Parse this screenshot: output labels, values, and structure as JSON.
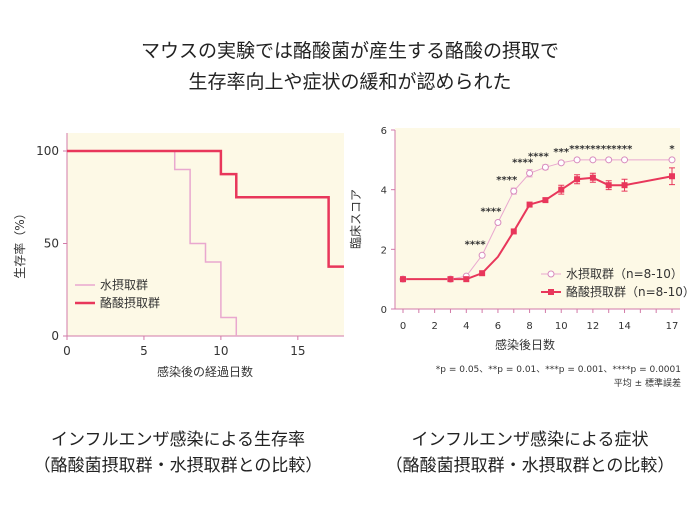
{
  "header": {
    "title_line1": "マウスの実験では酪酸菌が産生する酪酸の摂取で",
    "title_line2": "生存率向上や症状の緩和が認められた"
  },
  "colors": {
    "water": "#e9a8cf",
    "butyrate": "#e8375b",
    "plot_bg": "#fdf9e6",
    "axis": "#d27aa8"
  },
  "captions": {
    "left_line1": "インフルエンザ感染による生存率",
    "left_line2": "（酪酸菌摂取群・水摂取群との比較）",
    "right_line1": "インフルエンザ感染による症状",
    "right_line2": "（酪酸菌摂取群・水摂取群との比較）"
  },
  "chart_data": [
    {
      "type": "line",
      "step": true,
      "xlabel": "感染後の経過日数",
      "ylabel": "生存率（%）",
      "xlim": [
        0,
        18
      ],
      "ylim": [
        0,
        100
      ],
      "xticks": [
        "0",
        "5",
        "10",
        "15"
      ],
      "yticks": [
        "0",
        "50",
        "100"
      ],
      "legend_position": "bottom-left",
      "series": [
        {
          "name": "水摂取群",
          "x": [
            0,
            7,
            8,
            9,
            10,
            11
          ],
          "values": [
            100,
            90,
            50,
            40,
            10,
            0
          ]
        },
        {
          "name": "酪酸摂取群",
          "x": [
            0,
            10,
            11,
            17,
            18
          ],
          "values": [
            100,
            87.5,
            75,
            37.5,
            37.5
          ]
        }
      ]
    },
    {
      "type": "line",
      "xlabel": "感染後日数",
      "ylabel": "臨床スコア",
      "xlim": [
        0,
        17
      ],
      "ylim": [
        0,
        6
      ],
      "xticks": [
        "0",
        "2",
        "4",
        "6",
        "8",
        "10",
        "12",
        "14",
        "17"
      ],
      "yticks": [
        "0",
        "2",
        "4",
        "6"
      ],
      "legend_position": "bottom-right",
      "x": [
        0,
        3,
        4,
        5,
        6,
        7,
        8,
        9,
        10,
        11,
        12,
        13,
        14,
        17
      ],
      "series": [
        {
          "name": "水摂取群（n=8-10）",
          "values": [
            1,
            1,
            1.1,
            1.8,
            2.9,
            3.95,
            4.55,
            4.75,
            4.9,
            5,
            5,
            5,
            5,
            5
          ],
          "error": [
            0,
            0,
            0,
            0,
            0,
            0.1,
            0.12,
            0.08,
            0.05,
            0,
            0,
            0,
            0,
            0
          ]
        },
        {
          "name": "酪酸摂取群（n=8-10）",
          "values": [
            1,
            1,
            1,
            1.2,
            1.75,
            2.6,
            3.5,
            3.65,
            4.0,
            4.35,
            4.4,
            4.15,
            4.15,
            4.45
          ],
          "error": [
            0,
            0,
            0,
            0,
            0,
            0,
            0,
            0,
            0.15,
            0.15,
            0.15,
            0.15,
            0.2,
            0.28
          ]
        }
      ],
      "significance": [
        {
          "x": 5,
          "label": "****"
        },
        {
          "x": 6,
          "label": "****"
        },
        {
          "x": 7,
          "label": "****"
        },
        {
          "x": 8,
          "label": "****"
        },
        {
          "x": 9,
          "label": "****"
        },
        {
          "x": 10,
          "label": "***"
        },
        {
          "x": 11,
          "label": "***"
        },
        {
          "x": 12,
          "label": "***"
        },
        {
          "x": 13,
          "label": "***"
        },
        {
          "x": 14,
          "label": "***"
        },
        {
          "x": 17,
          "label": "*"
        }
      ],
      "note_pvalues": "*p = 0.05、**p = 0.01、***p = 0.001、****p = 0.0001",
      "note_stats": "平均 ± 標準誤差"
    }
  ]
}
